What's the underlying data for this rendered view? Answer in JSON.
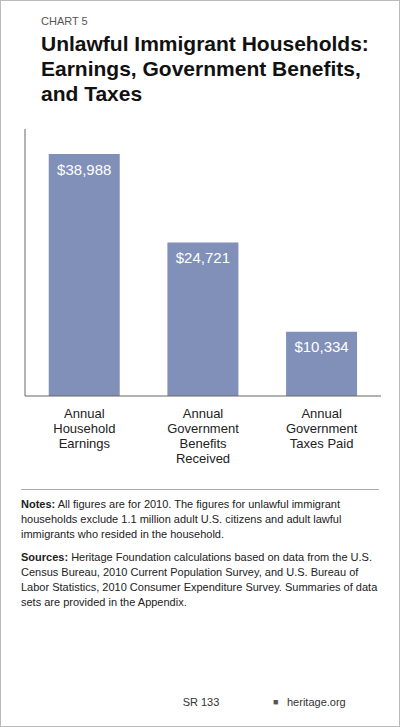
{
  "chart_data": {
    "type": "bar",
    "title": "Unlawful Immigrant Households:\nEarnings, Government Benefits,\nand Taxes",
    "categories": [
      "Annual\nHousehold\nEarnings",
      "Annual\nGovernment\nBenefits\nReceived",
      "Annual\nGovernment\nTaxes Paid"
    ],
    "values": [
      38988,
      24721,
      10334
    ],
    "value_labels": [
      "$38,988",
      "$24,721",
      "$10,334"
    ],
    "data_labels": true,
    "color": "#8090B8",
    "ylim": [
      0,
      43000
    ],
    "tick_labels": "x",
    "annotations": [
      "CHART 5",
      "Notes:",
      " All figures are for 2010. The figures for unlawful immigrant households exclude 1.1 million adult U.S. citizens and adult lawful immigrants who resided in the household.",
      "Sources:",
      " Heritage Foundation calculations based on data from the U.S. Census Bureau, 2010 Current Population Survey, and U.S. Bureau of Labor Statistics, 2010 Consumer Expenditure Survey. Summaries of data sets are provided in the Appendix.",
      "SR 133",
      "■",
      "heritage.org"
    ]
  }
}
